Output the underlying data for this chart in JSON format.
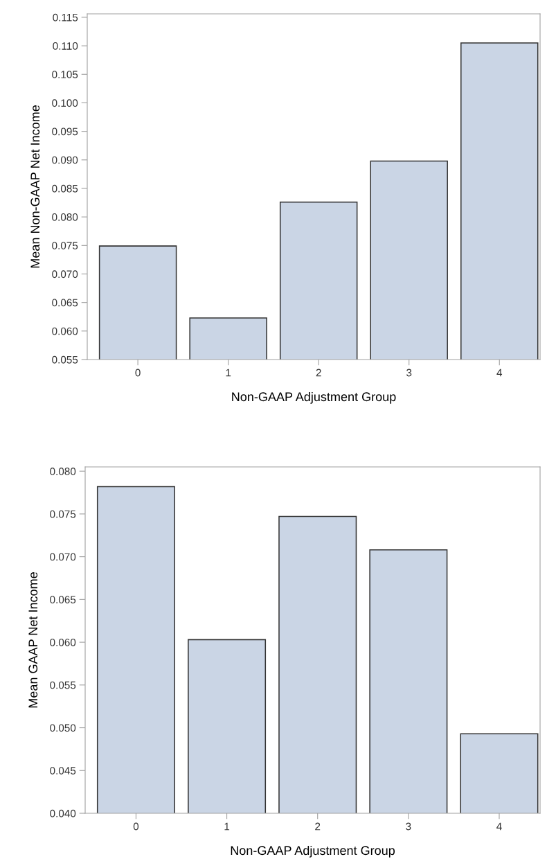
{
  "chart_data": [
    {
      "type": "bar",
      "xlabel": "Non-GAAP Adjustment Group",
      "ylabel": "Mean Non-GAAP Net Income",
      "categories": [
        "0",
        "1",
        "2",
        "3",
        "4"
      ],
      "values": [
        0.0749,
        0.0623,
        0.0826,
        0.0898,
        0.1105
      ],
      "color": "#cad5e5",
      "ylim": [
        0.055,
        0.1156
      ],
      "yticks": [
        {
          "value": 0.055,
          "label": "0.055"
        },
        {
          "value": 0.06,
          "label": "0.060"
        },
        {
          "value": 0.065,
          "label": "0.065"
        },
        {
          "value": 0.07,
          "label": "0.070"
        },
        {
          "value": 0.075,
          "label": "0.075"
        },
        {
          "value": 0.08,
          "label": "0.080"
        },
        {
          "value": 0.085,
          "label": "0.085"
        },
        {
          "value": 0.09,
          "label": "0.090"
        },
        {
          "value": 0.095,
          "label": "0.095"
        },
        {
          "value": 0.1,
          "label": "0.100"
        },
        {
          "value": 0.105,
          "label": "0.105"
        },
        {
          "value": 0.11,
          "label": "0.110"
        },
        {
          "value": 0.115,
          "label": "0.115"
        }
      ],
      "grid": false,
      "legend": false
    },
    {
      "type": "bar",
      "xlabel": "Non-GAAP Adjustment Group",
      "ylabel": "Mean GAAP Net Income",
      "categories": [
        "0",
        "1",
        "2",
        "3",
        "4"
      ],
      "values": [
        0.0782,
        0.0603,
        0.0747,
        0.0708,
        0.0493
      ],
      "color": "#cad5e5",
      "ylim": [
        0.04,
        0.0805
      ],
      "yticks": [
        {
          "value": 0.04,
          "label": "0.040"
        },
        {
          "value": 0.045,
          "label": "0.045"
        },
        {
          "value": 0.05,
          "label": "0.050"
        },
        {
          "value": 0.055,
          "label": "0.055"
        },
        {
          "value": 0.06,
          "label": "0.060"
        },
        {
          "value": 0.065,
          "label": "0.065"
        },
        {
          "value": 0.07,
          "label": "0.070"
        },
        {
          "value": 0.075,
          "label": "0.075"
        },
        {
          "value": 0.08,
          "label": "0.080"
        }
      ],
      "grid": false,
      "legend": false
    }
  ]
}
